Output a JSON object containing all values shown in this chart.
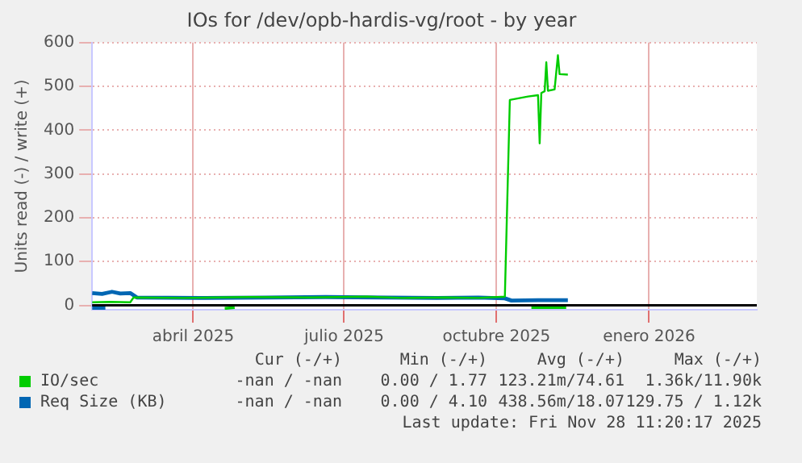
{
  "chart_data": {
    "type": "line",
    "title": "IOs for /dev/opb-hardis-vg/root - by year",
    "ylabel": "Units read (-) / write (+)",
    "xlim": [
      "2025-02-14",
      "2026-03-22"
    ],
    "xticks": [
      {
        "value": "2025-04-16",
        "label": "abril 2025"
      },
      {
        "value": "2025-07-16",
        "label": "julio 2025"
      },
      {
        "value": "2025-10-16",
        "label": "octubre 2025"
      },
      {
        "value": "2026-01-16",
        "label": "enero 2026"
      }
    ],
    "ylim": [
      -10,
      600
    ],
    "yticks": [
      0,
      100,
      200,
      300,
      400,
      500,
      600
    ],
    "grid": true,
    "legend": "bottom",
    "marker": "none",
    "line_style": "solid",
    "ref_lines": [
      {
        "axis": "y",
        "value": 0,
        "color": "#000000"
      }
    ],
    "series": [
      {
        "name": "IO/sec",
        "color": "#00cc00",
        "x": [
          "2025-02-14",
          "2025-02-25",
          "2025-03-09",
          "2025-03-11",
          "2025-04-10",
          "2025-05-20",
          "2025-06-25",
          "2025-07-30",
          "2025-08-20",
          "2025-09-15",
          "2025-10-05",
          "2025-10-21",
          "2025-10-24",
          "2025-11-04",
          "2025-11-10",
          "2025-11-11",
          "2025-11-12",
          "2025-11-14",
          "2025-11-15",
          "2025-11-16",
          "2025-11-20",
          "2025-11-22",
          "2025-11-23",
          "2025-11-28"
        ],
        "values": [
          7,
          8,
          7,
          18,
          17,
          19,
          18,
          20,
          17,
          18,
          17,
          20,
          469,
          477,
          480,
          370,
          485,
          489,
          555,
          490,
          493,
          571,
          528,
          527
        ]
      },
      {
        "color": "#00cc00",
        "x": [
          "2025-05-05",
          "2025-05-11",
          "2025-08-01",
          "2025-11-06",
          "2025-11-27"
        ],
        "values": [
          -7,
          -5,
          null,
          -5,
          -5
        ]
      },
      {
        "name": "Req Size (KB)",
        "color": "#0066b3",
        "x": [
          "2025-02-14",
          "2025-02-20",
          "2025-02-26",
          "2025-03-03",
          "2025-03-09",
          "2025-03-13",
          "2025-04-20",
          "2025-05-30",
          "2025-07-05",
          "2025-08-10",
          "2025-09-10",
          "2025-10-05",
          "2025-10-21",
          "2025-10-25",
          "2025-11-10",
          "2025-11-28"
        ],
        "values": [
          28,
          26,
          31,
          27,
          28,
          18,
          17,
          18,
          19,
          18,
          17,
          18,
          16,
          11,
          12,
          12
        ]
      },
      {
        "color": "#0066b3",
        "x": [
          "2025-02-14",
          "2025-02-22"
        ],
        "values": [
          -5,
          -5
        ]
      }
    ],
    "annotations": [
      "Cur (-/+)",
      "Min (-/+)",
      "Avg (-/+)",
      "Max (-/+)",
      "-nan / -nan",
      "0.00 / 1.77",
      "123.21m/74.61",
      "1.36k/11.90k",
      "-nan / -nan",
      "0.00 / 4.10",
      "438.56m/18.07",
      "129.75 / 1.12k",
      "Last update: Fri Nov 28 11:20:17 2025"
    ]
  }
}
